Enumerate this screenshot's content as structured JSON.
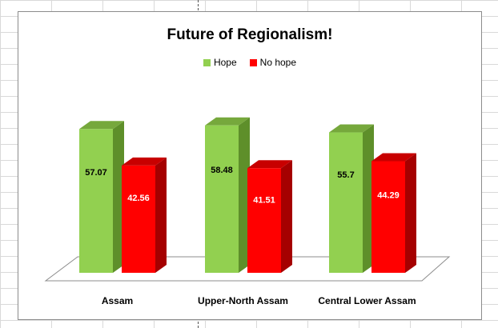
{
  "chart_data": {
    "type": "bar",
    "title": "Future of Regionalism!",
    "categories": [
      "Assam",
      "Upper-North Assam",
      "Central Lower Assam"
    ],
    "series": [
      {
        "name": "Hope",
        "values": [
          57.07,
          58.48,
          55.7
        ],
        "labels": [
          "57.07",
          "58.48",
          "55.7"
        ],
        "color": "#92d050",
        "side_color": "#5e8f2a",
        "top_color": "#76a83c",
        "label_color": "#000000"
      },
      {
        "name": "No hope",
        "values": [
          42.56,
          41.51,
          44.29
        ],
        "labels": [
          "42.56",
          "41.51",
          "44.29"
        ],
        "color": "#ff0000",
        "side_color": "#a50000",
        "top_color": "#c80000",
        "label_color": "#ffffff"
      }
    ],
    "ylim": [
      0,
      70
    ],
    "xlabel": "",
    "ylabel": "",
    "grid": false,
    "legend": "top",
    "style": "3d-column"
  }
}
